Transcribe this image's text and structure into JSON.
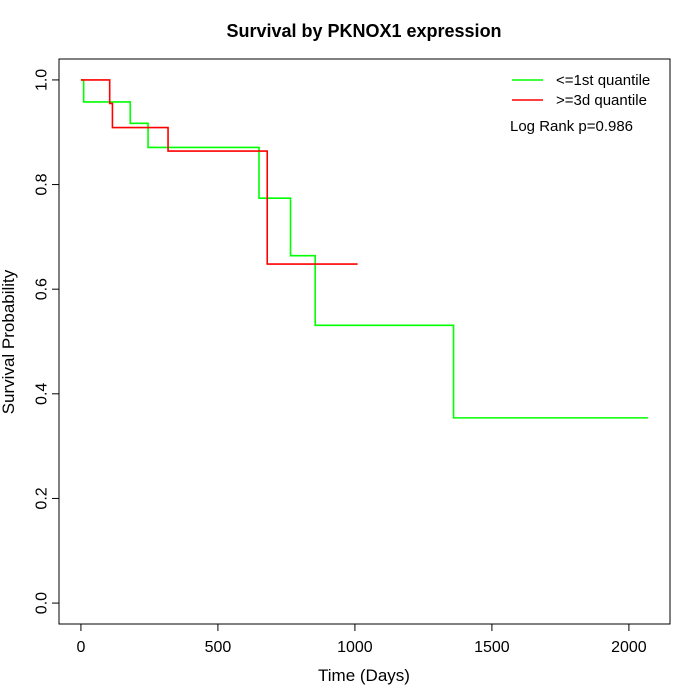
{
  "chart_data": {
    "type": "line",
    "title": "Survival by PKNOX1 expression",
    "xlabel": "Time (Days)",
    "ylabel": "Survival Probability",
    "xlim": [
      -80,
      2150
    ],
    "ylim": [
      -0.04,
      1.04
    ],
    "x_ticks": [
      0,
      500,
      1000,
      1500,
      2000
    ],
    "x_tick_labels": [
      "0",
      "500",
      "1000",
      "1500",
      "2000"
    ],
    "y_ticks": [
      0.0,
      0.2,
      0.4,
      0.6,
      0.8,
      1.0
    ],
    "y_tick_labels": [
      "0.0",
      "0.2",
      "0.4",
      "0.6",
      "0.8",
      "1.0"
    ],
    "grid": false,
    "legend_position": "top-right",
    "annotation": "Log Rank p=0.986",
    "series": [
      {
        "name": "<=1st quantile",
        "color": "#00ff00",
        "step": true,
        "x": [
          0,
          10,
          180,
          245,
          650,
          765,
          855,
          1360,
          2070
        ],
        "y": [
          1.0,
          0.958,
          0.917,
          0.871,
          0.774,
          0.664,
          0.531,
          0.354,
          0.354
        ]
      },
      {
        "name": ">=3d quantile",
        "color": "#ff0000",
        "step": true,
        "x": [
          0,
          105,
          115,
          318,
          680,
          1010
        ],
        "y": [
          1.0,
          0.955,
          0.909,
          0.864,
          0.648,
          0.648
        ]
      }
    ]
  }
}
